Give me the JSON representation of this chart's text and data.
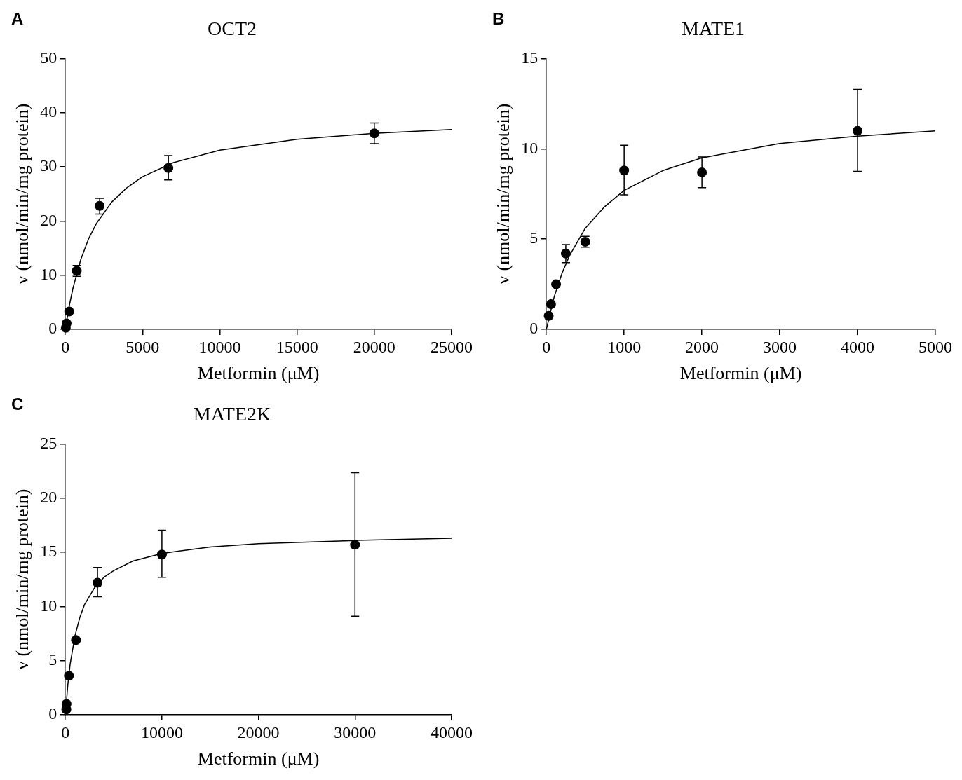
{
  "chart_data": [
    {
      "type": "scatter",
      "title": "OCT2",
      "xlabel": "Metformin (μM)",
      "ylabel": "v (nmol/min/mg protein)",
      "annotations": [
        "A"
      ],
      "xlim": [
        0,
        25000
      ],
      "xticks": [
        0,
        5000,
        10000,
        15000,
        20000,
        25000
      ],
      "ylim": [
        0,
        50
      ],
      "yticks": [
        0,
        10,
        20,
        30,
        40,
        50
      ],
      "marker": "circle",
      "series": [
        {
          "type": "scatter",
          "color": "#000000",
          "x": [
            30,
            80,
            250,
            740,
            2220,
            6670,
            20000
          ],
          "values": [
            0.3,
            1.1,
            3.3,
            10.8,
            22.8,
            29.8,
            36.2
          ],
          "errors": [
            null,
            null,
            null,
            [
              9.8,
              11.8
            ],
            [
              21.3,
              24.2
            ],
            [
              27.6,
              32.1
            ],
            [
              34.3,
              38.1
            ]
          ]
        },
        {
          "type": "line",
          "color": "#000000",
          "marker": "none",
          "line_style": "solid",
          "x": [
            0,
            250,
            500,
            1000,
            1500,
            2000,
            3000,
            4000,
            5000,
            7000,
            10000,
            15000,
            20000,
            25000
          ],
          "values": [
            0,
            4.3,
            7.7,
            12.9,
            16.7,
            19.5,
            23.5,
            26.2,
            28.2,
            30.8,
            33.1,
            35.1,
            36.2,
            36.9
          ]
        }
      ]
    },
    {
      "type": "scatter",
      "title": "MATE1",
      "xlabel": "Metformin (μM)",
      "ylabel": "v (nmol/min/mg protein)",
      "annotations": [
        "B"
      ],
      "xlim": [
        0,
        5000
      ],
      "xticks": [
        0,
        1000,
        2000,
        3000,
        4000,
        5000
      ],
      "ylim": [
        0,
        15
      ],
      "yticks": [
        0,
        5,
        10,
        15
      ],
      "marker": "circle",
      "series": [
        {
          "type": "scatter",
          "color": "#000000",
          "x": [
            30,
            60,
            125,
            250,
            500,
            1000,
            2000,
            4000
          ],
          "values": [
            0.75,
            1.4,
            2.5,
            4.2,
            4.85,
            8.8,
            8.7,
            11.0
          ],
          "errors": [
            null,
            null,
            null,
            [
              3.7,
              4.7
            ],
            [
              4.55,
              5.15
            ],
            [
              7.45,
              10.2
            ],
            [
              7.85,
              9.55
            ],
            [
              8.75,
              13.3
            ]
          ]
        },
        {
          "type": "line",
          "color": "#000000",
          "marker": "none",
          "line_style": "solid",
          "x": [
            0,
            100,
            200,
            300,
            500,
            750,
            1000,
            1500,
            2000,
            2500,
            3000,
            4000,
            5000
          ],
          "values": [
            0,
            1.8,
            3.1,
            4.1,
            5.6,
            6.8,
            7.7,
            8.8,
            9.5,
            9.9,
            10.3,
            10.7,
            11.0
          ]
        }
      ]
    },
    {
      "type": "scatter",
      "title": "MATE2K",
      "xlabel": "Metformin (μM)",
      "ylabel": "v (nmol/min/mg protein)",
      "annotations": [
        "C"
      ],
      "xlim": [
        0,
        40000
      ],
      "xticks": [
        0,
        10000,
        20000,
        30000,
        40000
      ],
      "ylim": [
        0,
        25
      ],
      "yticks": [
        0,
        5,
        10,
        15,
        20,
        25
      ],
      "marker": "circle",
      "series": [
        {
          "type": "scatter",
          "color": "#000000",
          "x": [
            100,
            120,
            370,
            1100,
            3330,
            10000,
            30000
          ],
          "values": [
            0.5,
            1.0,
            3.6,
            6.9,
            12.2,
            14.8,
            15.7
          ],
          "errors": [
            null,
            null,
            null,
            null,
            [
              10.9,
              13.6
            ],
            [
              12.7,
              17.05
            ],
            [
              9.1,
              22.35
            ]
          ]
        },
        {
          "type": "line",
          "color": "#000000",
          "marker": "none",
          "line_style": "solid",
          "x": [
            0,
            250,
            500,
            1000,
            1500,
            2000,
            3000,
            4000,
            5000,
            7000,
            10000,
            15000,
            20000,
            30000,
            40000
          ],
          "values": [
            0,
            2.7,
            4.7,
            7.3,
            9.0,
            10.2,
            11.7,
            12.7,
            13.3,
            14.2,
            14.9,
            15.5,
            15.8,
            16.1,
            16.3
          ]
        }
      ]
    }
  ]
}
